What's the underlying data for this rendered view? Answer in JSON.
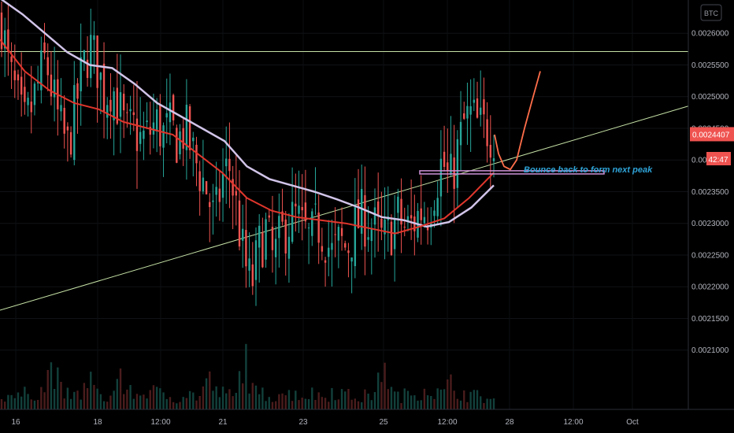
{
  "chart_data": {
    "type": "candlestick",
    "currency": "BTC",
    "x_tick_labels": [
      "16",
      "18",
      "12:00",
      "21",
      "23",
      "25",
      "12:00",
      "28",
      "12:00",
      "Oct"
    ],
    "y_tick_labels": [
      "0.0026000",
      "0.0025500",
      "0.0025000",
      "0.0024500",
      "0.0024000",
      "0.0023500",
      "0.0023000",
      "0.0022500",
      "0.0022000",
      "0.0021500",
      "0.0021000"
    ],
    "ylim": [
      0.00205,
      0.00264
    ],
    "last_price": "0.0024407",
    "countdown": "42:47",
    "annotation": "Bounce back to form next peak",
    "colors": {
      "up": "#26a69a",
      "down": "#ef5350",
      "ma_slow": "#d1c4e9",
      "ma_fast": "#e0362c",
      "resistance": "#c5e1a5",
      "trendline": "#c5e1a5",
      "projection": "#ff6e4a",
      "zone": "#ce93d8",
      "badge": "#ef5350"
    },
    "resistance_level": 0.002571,
    "trendline": {
      "from": 0.002163,
      "to": 0.002485
    },
    "zone": [
      0.002378,
      0.002383
    ],
    "close_path": [
      0.00262,
      0.00254,
      0.0025,
      0.00245,
      0.00248,
      0.00252,
      0.00256,
      0.0025,
      0.00245,
      0.00242,
      0.00248,
      0.00254,
      0.00258,
      0.00255,
      0.0025,
      0.00252,
      0.00248,
      0.00244,
      0.00245,
      0.00243,
      0.00244,
      0.00246,
      0.00244,
      0.00245,
      0.00243,
      0.00245,
      0.00241,
      0.00238,
      0.00235,
      0.0023,
      0.00237,
      0.00239,
      0.00232,
      0.00224,
      0.0022,
      0.00226,
      0.00229,
      0.00224,
      0.00228,
      0.0023,
      0.00231,
      0.00229,
      0.00227,
      0.0023,
      0.00228,
      0.00225,
      0.00227,
      0.00226,
      0.00229,
      0.00231,
      0.0023,
      0.00229,
      0.00227,
      0.00229,
      0.00231,
      0.00229,
      0.0023,
      0.00232,
      0.00232,
      0.00236,
      0.0024,
      0.00236,
      0.00241,
      0.00246,
      0.00247,
      0.00245,
      0.00245,
      0.00244
    ],
    "ma_slow": [
      0.002655,
      0.00263,
      0.0026,
      0.00257,
      0.00255,
      0.002545,
      0.00252,
      0.00249,
      0.00247,
      0.00245,
      0.00243,
      0.00239,
      0.00237,
      0.00236,
      0.00235,
      0.002338,
      0.002325,
      0.00231,
      0.002305,
      0.002295,
      0.002302,
      0.002325,
      0.00236
    ],
    "ma_fast": [
      0.00259,
      0.00254,
      0.00251,
      0.00249,
      0.00248,
      0.00246,
      0.00245,
      0.00244,
      0.00241,
      0.00238,
      0.00234,
      0.00232,
      0.00231,
      0.002305,
      0.0023,
      0.002292,
      0.002284,
      0.002295,
      0.002308,
      0.00234,
      0.00238
    ],
    "projection": [
      0.00244,
      0.00241,
      0.00239,
      0.002385,
      0.0024,
      0.00245,
      0.0025,
      0.00254
    ],
    "volume": [
      8,
      10,
      7,
      9,
      12,
      10,
      15,
      30,
      12,
      9,
      8,
      11,
      20,
      9,
      8,
      7,
      25,
      9,
      11,
      8,
      14,
      10,
      9,
      8,
      7,
      10,
      9,
      8,
      20,
      12,
      10,
      9,
      8,
      40,
      12,
      9,
      10,
      8,
      12,
      9,
      11,
      8,
      10,
      9,
      8,
      12,
      11,
      9,
      8,
      7,
      10,
      9,
      35,
      11,
      8,
      9,
      10,
      12,
      14,
      11,
      9,
      16,
      12,
      10,
      9,
      8,
      7,
      6
    ]
  }
}
